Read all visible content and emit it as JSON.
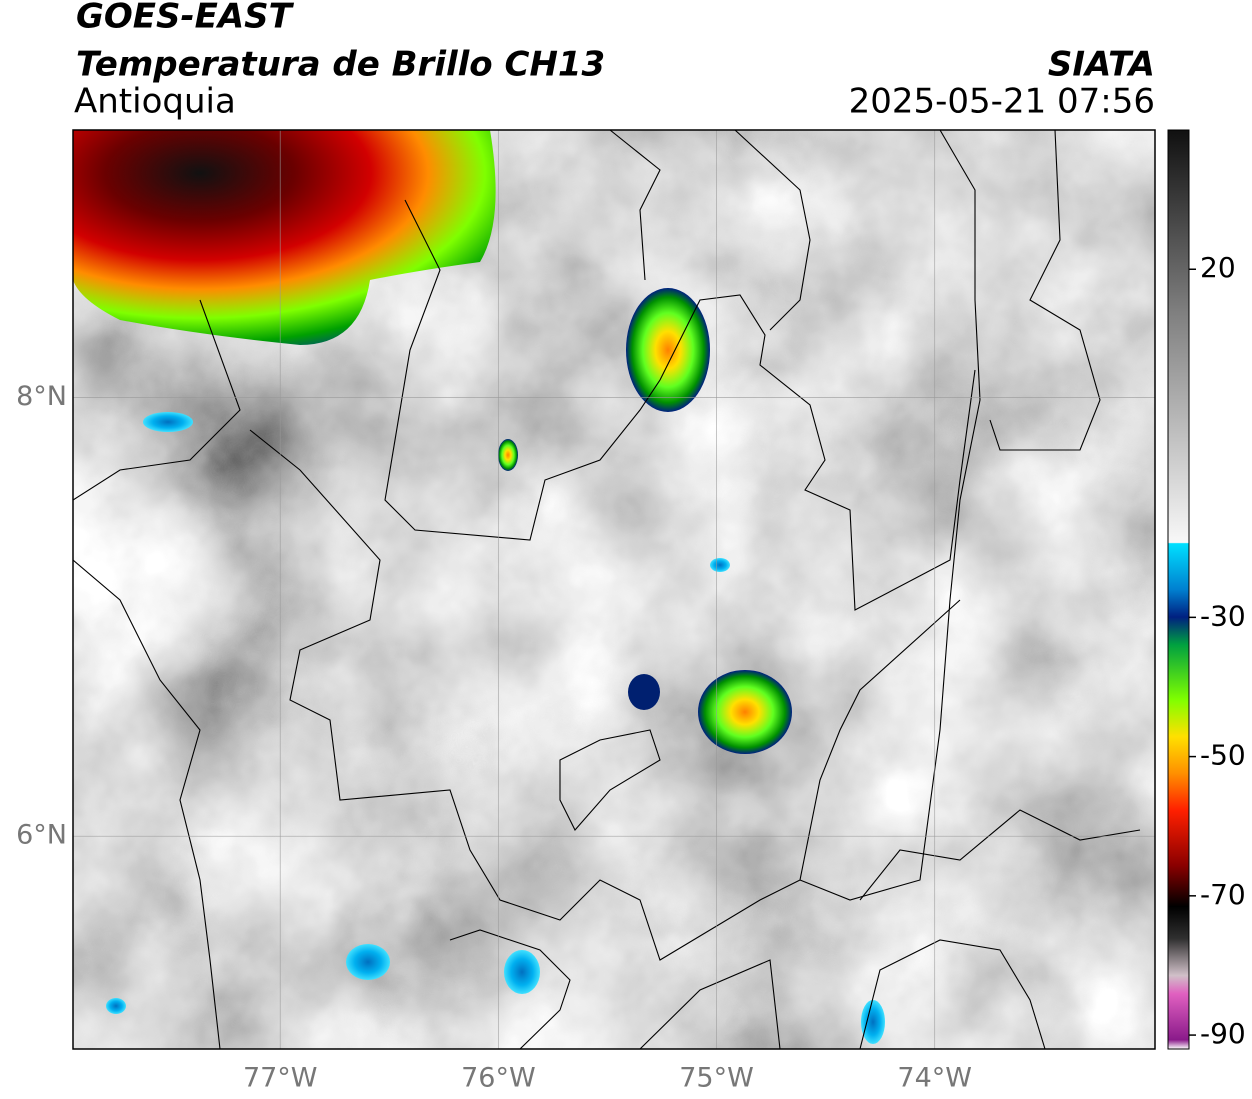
{
  "header": {
    "title": "GOES-EAST",
    "subtitle": "Temperatura de Brillo CH13",
    "region": "Antioquia",
    "source": "SIATA",
    "datetime": "2025-05-21 07:56"
  },
  "map": {
    "xlim": [
      -77.95,
      -72.99
    ],
    "ylim": [
      5.03,
      9.22
    ],
    "xticks": [
      {
        "value": -77,
        "label": "77°W"
      },
      {
        "value": -76,
        "label": "76°W"
      },
      {
        "value": -75,
        "label": "75°W"
      },
      {
        "value": -74,
        "label": "74°W"
      }
    ],
    "yticks": [
      {
        "value": 8,
        "label": "8°N"
      },
      {
        "value": 6,
        "label": "6°N"
      }
    ],
    "grid": true
  },
  "colorbar": {
    "lim": [
      -92,
      40
    ],
    "ticks": [
      20,
      -30,
      -50,
      -70,
      -90
    ]
  }
}
